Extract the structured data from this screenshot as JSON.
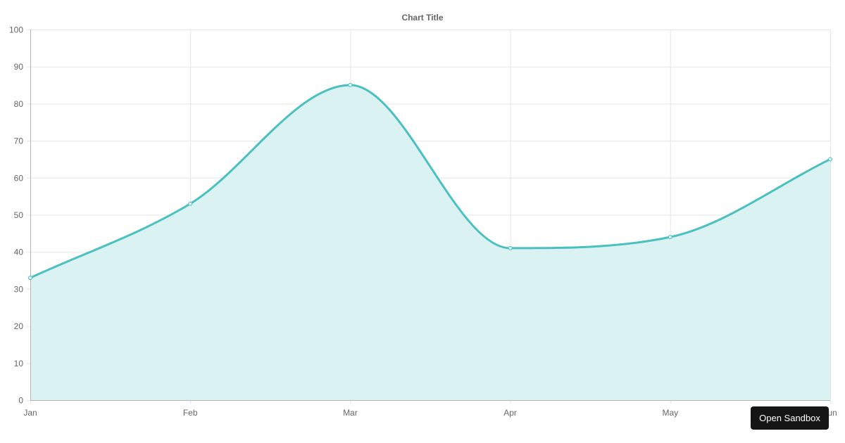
{
  "chart_data": {
    "type": "area",
    "title": "Chart Title",
    "categories": [
      "Jan",
      "Feb",
      "Mar",
      "Apr",
      "May",
      "Jun"
    ],
    "series": [
      {
        "values": [
          33,
          53,
          85,
          41,
          44,
          65
        ]
      }
    ],
    "ylim": [
      0,
      100
    ],
    "y_ticks": [
      0,
      10,
      20,
      30,
      40,
      50,
      60,
      70,
      80,
      90,
      100
    ],
    "grid": true,
    "smooth": true,
    "legend": "none",
    "colors": {
      "line": "#4bc0c0",
      "fill": "#daf2f2",
      "grid": "#e6e6e6",
      "axis": "#b3b3b3",
      "text": "#666666"
    }
  },
  "sandbox_button": {
    "label": "Open Sandbox"
  }
}
